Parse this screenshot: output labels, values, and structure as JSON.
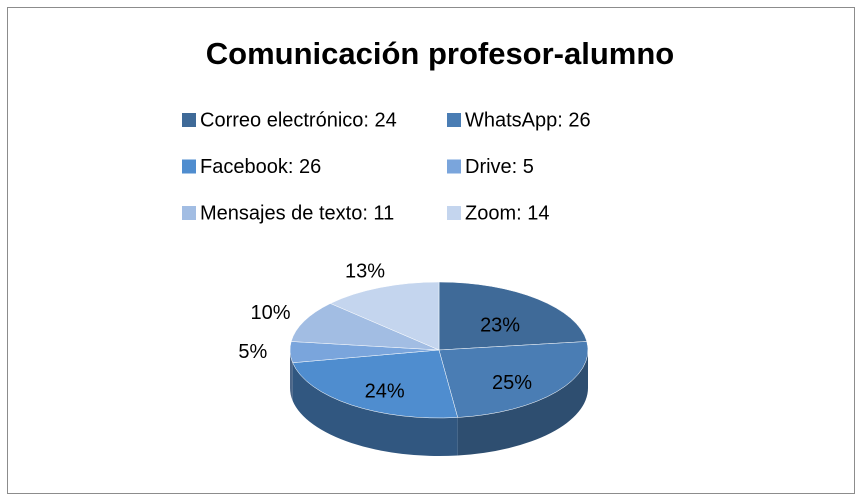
{
  "chart_data": {
    "type": "pie3d",
    "title": "Comunicación profesor-alumno",
    "categories": [
      "Correo electrónico",
      "WhatsApp",
      "Facebook",
      "Drive",
      "Mensajes de texto",
      "Zoom"
    ],
    "legend_labels": [
      "Correo electrónico: 24",
      "WhatsApp: 26",
      "Facebook: 26",
      "Drive: 5",
      "Mensajes de texto: 11",
      "Zoom: 14"
    ],
    "values": [
      23,
      25,
      24,
      5,
      10,
      13
    ],
    "value_labels": [
      "23%",
      "25%",
      "24%",
      "5%",
      "10%",
      "13%"
    ],
    "colors": [
      "#3f6a98",
      "#4a7db4",
      "#4f8dcf",
      "#7aa5dc",
      "#a2bde3",
      "#c4d5ee"
    ],
    "legend": "top"
  }
}
